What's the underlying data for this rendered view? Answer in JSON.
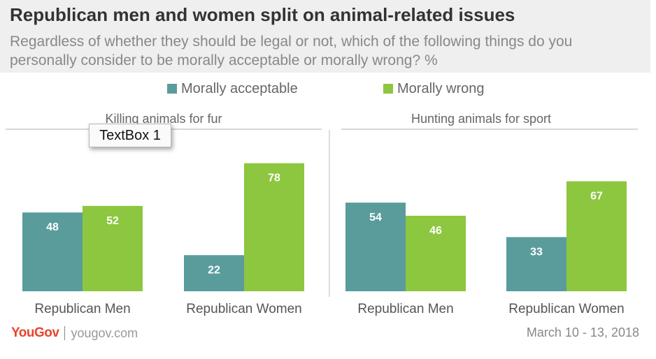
{
  "header": {
    "title": "Republican men and women split on animal-related issues",
    "subtitle": "Regardless of whether they should be legal or not, which of the following things do you personally consider to be morally acceptable or morally wrong? %"
  },
  "legend": {
    "items": [
      {
        "label": "Morally acceptable",
        "color": "#5a9c9c"
      },
      {
        "label": "Morally wrong",
        "color": "#8dc63f"
      }
    ]
  },
  "textbox": {
    "label": "TextBox 1"
  },
  "chart_data": [
    {
      "type": "bar",
      "title": "Killing animals for fur",
      "categories": [
        "Republican Men",
        "Republican Women"
      ],
      "series": [
        {
          "name": "Morally acceptable",
          "values": [
            48,
            22
          ]
        },
        {
          "name": "Morally wrong",
          "values": [
            52,
            78
          ]
        }
      ],
      "ylim": [
        0,
        80
      ]
    },
    {
      "type": "bar",
      "title": "Hunting animals for sport",
      "categories": [
        "Republican Men",
        "Republican Women"
      ],
      "series": [
        {
          "name": "Morally acceptable",
          "values": [
            54,
            33
          ]
        },
        {
          "name": "Morally wrong",
          "values": [
            46,
            67
          ]
        }
      ],
      "ylim": [
        0,
        80
      ]
    }
  ],
  "footer": {
    "brand": "YouGov",
    "site": "yougov.com",
    "date": "March 10 - 13, 2018"
  }
}
